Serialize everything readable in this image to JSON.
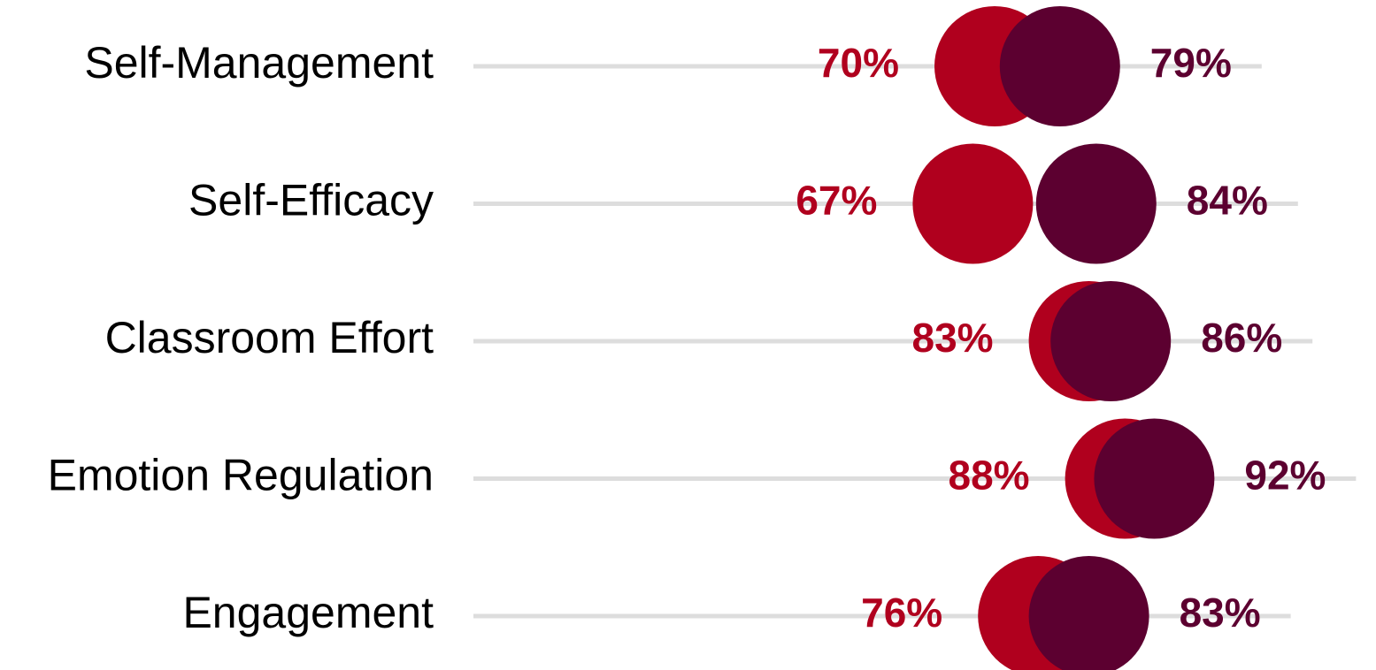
{
  "chart_data": {
    "type": "dumbbell",
    "categories": [
      "Self-Management",
      "Self-Efficacy",
      "Classroom Effort",
      "Emotion Regulation",
      "Engagement"
    ],
    "series": [
      {
        "color": "#b0001e",
        "values": [
          70,
          67,
          83,
          88,
          76
        ],
        "value_labels": [
          "70%",
          "67%",
          "83%",
          "88%",
          "76%"
        ]
      },
      {
        "color": "#5c0030",
        "values": [
          79,
          84,
          86,
          92,
          83
        ],
        "value_labels": [
          "79%",
          "84%",
          "86%",
          "92%",
          "83%"
        ]
      }
    ]
  }
}
